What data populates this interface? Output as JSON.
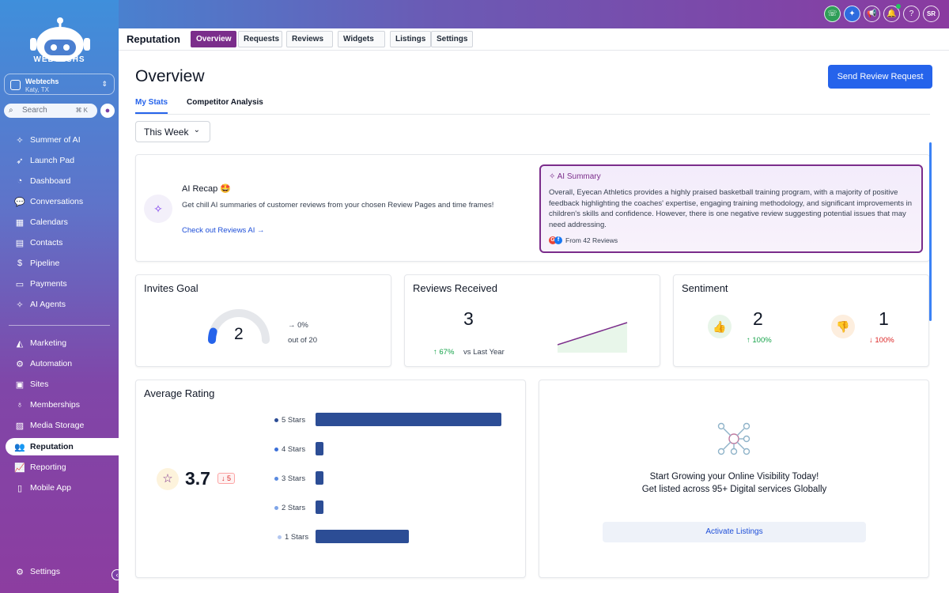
{
  "sidebar": {
    "logo_text": "WEBTECHS",
    "location": {
      "name": "Webtechs",
      "sub": "Katy, TX"
    },
    "search": {
      "placeholder": "Search",
      "shortcut": "⌘ K"
    },
    "items": [
      {
        "label": "Summer of AI",
        "icon": "sparkle-icon"
      },
      {
        "label": "Launch Pad",
        "icon": "rocket-icon"
      },
      {
        "label": "Dashboard",
        "icon": "gauge-icon"
      },
      {
        "label": "Conversations",
        "icon": "chat-icon"
      },
      {
        "label": "Calendars",
        "icon": "calendar-icon"
      },
      {
        "label": "Contacts",
        "icon": "contacts-icon"
      },
      {
        "label": "Pipeline",
        "icon": "dollar-icon"
      },
      {
        "label": "Payments",
        "icon": "payments-icon"
      },
      {
        "label": "AI Agents",
        "icon": "sparkle-icon"
      },
      {
        "label": "Marketing",
        "icon": "megaphone-icon"
      },
      {
        "label": "Automation",
        "icon": "gear-icon"
      },
      {
        "label": "Sites",
        "icon": "sites-icon"
      },
      {
        "label": "Memberships",
        "icon": "award-icon"
      },
      {
        "label": "Media Storage",
        "icon": "image-icon"
      },
      {
        "label": "Reputation",
        "icon": "users-star-icon",
        "active": true
      },
      {
        "label": "Reporting",
        "icon": "chart-icon"
      },
      {
        "label": "Mobile App",
        "icon": "mobile-icon"
      }
    ],
    "settings_label": "Settings"
  },
  "topbar": {
    "avatar_initials": "SR"
  },
  "header": {
    "title": "Reputation",
    "tabs": [
      "Overview",
      "Requests",
      "Reviews",
      "Widgets",
      "Listings",
      "Settings"
    ],
    "active_tab": "Overview"
  },
  "main": {
    "title": "Overview",
    "send_button": "Send Review Request",
    "stat_tabs": [
      "My Stats",
      "Competitor Analysis"
    ],
    "period": "This Week"
  },
  "recap": {
    "title": "AI Recap 🤩",
    "description": "Get chill AI summaries of customer reviews from your chosen Review Pages and time frames!",
    "link": "Check out Reviews AI →",
    "summary_heading": "AI Summary",
    "summary_text": "Overall, Eyecan Athletics provides a highly praised basketball training program, with a majority of positive feedback highlighting the coaches' expertise, engaging training methodology, and significant improvements in children's skills and confidence. However, there is one negative review suggesting potential issues that may need addressing.",
    "summary_footer": "From 42 Reviews"
  },
  "invites_goal": {
    "title": "Invites Goal",
    "value": "2",
    "change": "→ 0%",
    "out_of": "out of 20",
    "progress_fraction": 0.1
  },
  "reviews_received": {
    "title": "Reviews Received",
    "value": "3",
    "change": "↑ 67%",
    "compare": "vs Last Year"
  },
  "sentiment": {
    "title": "Sentiment",
    "positive_value": "2",
    "positive_change": "↑ 100%",
    "negative_value": "1",
    "negative_change": "↓ 100%"
  },
  "average_rating": {
    "title": "Average Rating",
    "value": "3.7",
    "change": "↓ 5",
    "bars": [
      {
        "label": "5 Stars",
        "fraction": 1.0,
        "dot": "#2c4d95"
      },
      {
        "label": "4 Stars",
        "fraction": 0.04,
        "dot": "#3b6fd8"
      },
      {
        "label": "3 Stars",
        "fraction": 0.04,
        "dot": "#5b8be0"
      },
      {
        "label": "2 Stars",
        "fraction": 0.04,
        "dot": "#7fa5e8"
      },
      {
        "label": "1 Stars",
        "fraction": 0.5,
        "dot": "#b3c7f0"
      }
    ]
  },
  "listings": {
    "line1": "Start Growing your Online Visibility Today!",
    "line2": "Get listed across 95+ Digital services Globally",
    "button": "Activate Listings"
  }
}
